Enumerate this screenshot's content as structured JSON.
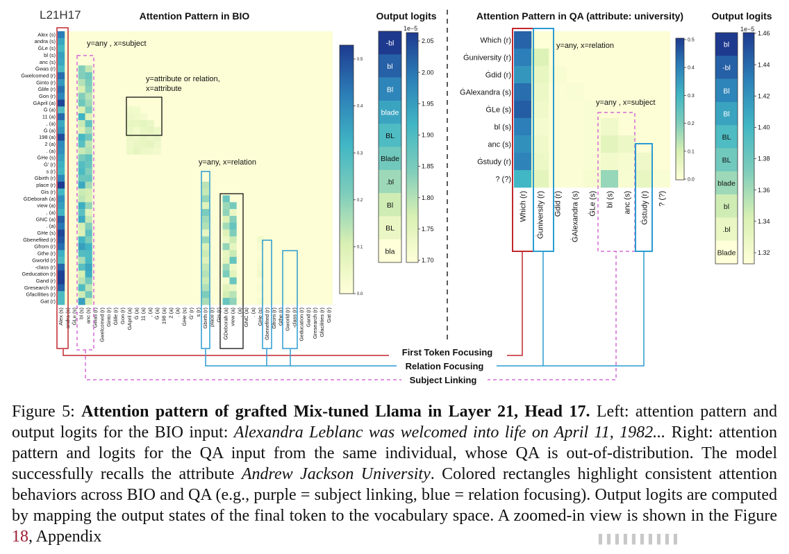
{
  "figure": {
    "layer_head_label": "L21H17",
    "bio_title": "Attention Pattern in BIO",
    "qa_title": "Attention Pattern in QA (attribute: university)",
    "output_logits_title": "Output logits",
    "scale_note": "1e−5"
  },
  "bio_panel": {
    "tokens": [
      "Alex (s)",
      "andra (s)",
      "ĠLe (s)",
      "bl (s)",
      "anc (s)",
      "Ġwas (r)",
      "Ġwelcomed (r)",
      "Ginto (r)",
      "Ġlife (r)",
      "Gon (r)",
      "GApril (a)",
      "Ġ (a)",
      "11 (a)",
      ", (a)",
      "Ġ (a)",
      "198 (a)",
      "2 (a)",
      ". (a)",
      "ĠHe (s)",
      "Ġ' (r)",
      "s (r)",
      "Gbirth (r)",
      "place (r)",
      "Gis (r)",
      "ĠDeborah (a)",
      "view (a)",
      ", (a)",
      "GNC (a)",
      ". (a)",
      "GHe (s)",
      "Ġbenefited (r)",
      "Gfrom (r)",
      "Gthe (r)",
      "Gworld (r)",
      "-class (r)",
      "Geducation (r)",
      "Gand (r)",
      "Gresearch (r)",
      "Gfacilities (r)",
      "Gat (r)"
    ],
    "annotations": {
      "subject": "y=any , x=subject",
      "attribute_line1": "y=attribute or relation,",
      "attribute_line2": "x=attribute",
      "relation": "y=any, x=relation"
    },
    "colorbar_ticks": [
      "0.5",
      "0.4",
      "0.3",
      "0.2",
      "0.1",
      "0.0"
    ]
  },
  "bio_logits": {
    "tokens": [
      "-bl",
      "bl",
      "Bl",
      "blade",
      "BL",
      "Blade",
      ".bl",
      "Bl",
      "BL",
      "bla"
    ],
    "colorbar_ticks": [
      "2.05",
      "2.00",
      "1.95",
      "1.90",
      "1.85",
      "1.80",
      "1.75",
      "1.70"
    ]
  },
  "qa_panel": {
    "tokens": [
      "Which (r)",
      "Ġuniversity (r)",
      "Ġdid (r)",
      "ĠAlexandra (s)",
      "ĠLe (s)",
      "bl (s)",
      "anc (s)",
      "Ġstudy (r)",
      "? (?)"
    ],
    "annotations": {
      "relation": "y=any, x=relation",
      "subject": "y=any , x=subject"
    },
    "colorbar_ticks": [
      "0.5",
      "0.4",
      "0.3",
      "0.2",
      "0.1",
      "0.0"
    ]
  },
  "qa_logits": {
    "tokens": [
      "bl",
      "-bl",
      "Bl",
      "Bl",
      "BL",
      "BL",
      "blade",
      "bl",
      ".bl",
      "Blade"
    ],
    "colorbar_ticks": [
      "1.46",
      "1.44",
      "1.42",
      "1.40",
      "1.38",
      "1.36",
      "1.34",
      "1.32"
    ]
  },
  "legend": {
    "first_token": "First Token Focusing",
    "relation": "Relation Focusing",
    "subject_linking": "Subject Linking"
  },
  "colors": {
    "red": "#c0272d",
    "blue": "#2a9bd0",
    "purple": "#d46bd6",
    "heat_low": "#ffffd9",
    "heat_high": "#1e3a8f"
  },
  "caption": {
    "label": "Figure 5: ",
    "bold": "Attention pattern of grafted Mix-tuned Llama in Layer 21, Head 17.",
    "t1": " Left: attention pattern and output logits for the BIO input: ",
    "i1": "Alexandra Leblanc was welcomed into life on April 11, 1982...",
    "t2": " Right: attention pattern and logits for the QA input from the same individual, whose QA is out-of-distribution. The model successfully recalls the attribute ",
    "i2": "Andrew Jackson University",
    "t3": ". Colored rectangles highlight consistent attention behaviors across BIO and QA (e.g., purple = subject linking, blue = relation focusing). Output logits are computed by mapping the output states of the final token to the vocabulary space. A zoomed-in view is shown in the Figure ",
    "ref": "18",
    "t4": ", Appendix"
  }
}
